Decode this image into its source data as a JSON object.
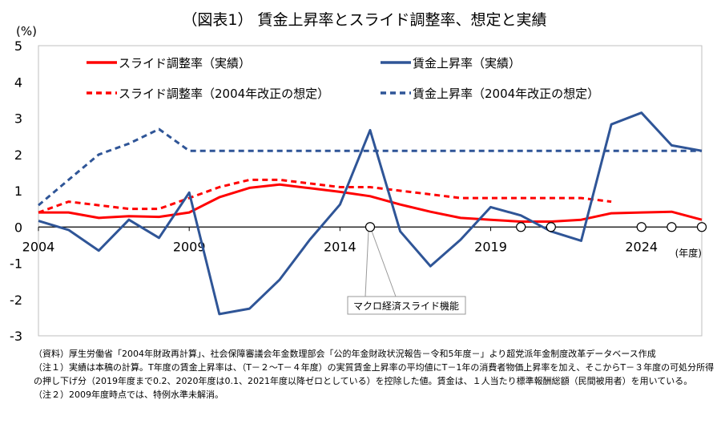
{
  "chart_data": {
    "type": "line",
    "title": "（図表1） 賃金上昇率とスライド調整率、想定と実績",
    "ylabel": "(%)",
    "xlabel": "(年度)",
    "ylim": [
      -3,
      5
    ],
    "xlim": [
      2004,
      2026
    ],
    "yticks": [
      5,
      4,
      3,
      2,
      1,
      0,
      -1,
      -2,
      -3
    ],
    "xticks": [
      2004,
      2009,
      2014,
      2019,
      2024
    ],
    "series": [
      {
        "name": "スライド調整率（実績）",
        "color": "#ff0000",
        "style": "solid",
        "x": [
          2004,
          2005,
          2006,
          2007,
          2008,
          2009,
          2010,
          2011,
          2012,
          2013,
          2014,
          2015,
          2016,
          2017,
          2018,
          2019,
          2020,
          2021,
          2022,
          2023,
          2024,
          2025,
          2026
        ],
        "values": [
          0.4,
          0.4,
          0.25,
          0.3,
          0.28,
          0.4,
          0.82,
          1.08,
          1.17,
          1.07,
          0.97,
          0.85,
          0.62,
          0.42,
          0.25,
          0.2,
          0.15,
          0.15,
          0.2,
          0.38,
          0.4,
          0.42,
          0.2
        ]
      },
      {
        "name": "賃金上昇率（実績）",
        "color": "#2f5597",
        "style": "solid",
        "x": [
          2004,
          2005,
          2006,
          2007,
          2008,
          2009,
          2010,
          2011,
          2012,
          2013,
          2014,
          2015,
          2016,
          2017,
          2018,
          2019,
          2020,
          2021,
          2022,
          2023,
          2024,
          2025,
          2026
        ],
        "values": [
          0.17,
          -0.08,
          -0.65,
          0.2,
          -0.3,
          0.95,
          -2.4,
          -2.25,
          -1.45,
          -0.35,
          0.62,
          2.67,
          -0.12,
          -1.08,
          -0.35,
          0.55,
          0.32,
          -0.12,
          -0.38,
          2.83,
          3.15,
          2.25,
          2.1
        ]
      },
      {
        "name": "スライド調整率（2004年改正の想定）",
        "color": "#ff0000",
        "style": "dashed",
        "x": [
          2004,
          2005,
          2006,
          2007,
          2008,
          2009,
          2010,
          2011,
          2012,
          2013,
          2014,
          2015,
          2016,
          2017,
          2018,
          2019,
          2020,
          2021,
          2022,
          2023
        ],
        "values": [
          0.4,
          0.7,
          0.6,
          0.5,
          0.5,
          0.8,
          1.1,
          1.3,
          1.3,
          1.2,
          1.1,
          1.1,
          1.0,
          0.9,
          0.8,
          0.8,
          0.8,
          0.8,
          0.8,
          0.7
        ]
      },
      {
        "name": "賃金上昇率（2004年改正の想定）",
        "color": "#2f5597",
        "style": "dashed",
        "x": [
          2004,
          2005,
          2006,
          2007,
          2008,
          2009,
          2010,
          2011,
          2012,
          2013,
          2014,
          2015,
          2016,
          2017,
          2018,
          2019,
          2020,
          2021,
          2022,
          2023,
          2024,
          2025,
          2026
        ],
        "values": [
          0.6,
          1.3,
          2.0,
          2.3,
          2.7,
          2.1,
          2.1,
          2.1,
          2.1,
          2.1,
          2.1,
          2.1,
          2.1,
          2.1,
          2.1,
          2.1,
          2.1,
          2.1,
          2.1,
          2.1,
          2.1,
          2.1,
          2.1
        ]
      }
    ],
    "macro_slide_years": [
      2015,
      2020,
      2021,
      2024,
      2025,
      2026
    ],
    "annotation": "マクロ経済スライド機能"
  },
  "notes": [
    "（資料）厚生労働省「2004年財政再計算」、社会保障審議会年金数理部会「公的年金財政状況報告－令和5年度－」より超党派年金制度改革データベース作成",
    "（注１）実績は本稿の計算。T年度の賃金上昇率は、（T－２～T－４年度）の実質賃金上昇率の平均値にT－1年の消費者物価上昇率を加え、そこからT－３年度の可処分所得の押し下げ分（2019年度まで0.2、2020年度は0.1、2021年度以降ゼロとしている）を控除した値。賃金は、１人当たり標準報酬総額（民間被用者）を用いている。",
    "（注２）2009年度時点では、特例水準未解消。"
  ]
}
